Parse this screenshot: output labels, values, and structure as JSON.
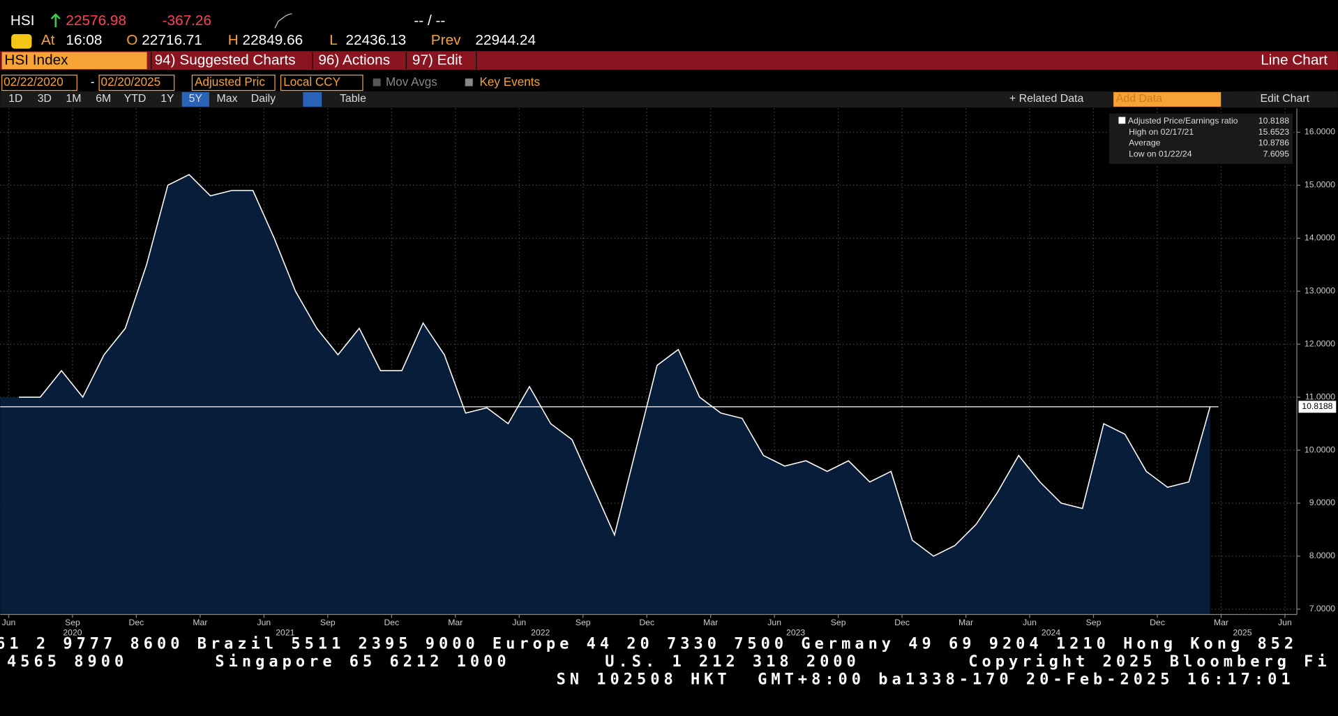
{
  "header": {
    "ticker": "HSI",
    "price": "22576.98",
    "change": "-367.26",
    "bid_ask": "-- / --",
    "time_label": "At",
    "time": "16:08",
    "open_label": "O",
    "open": "22716.71",
    "high_label": "H",
    "high": "22849.66",
    "low_label": "L",
    "low": "22436.13",
    "prev_label": "Prev",
    "prev": "22944.24"
  },
  "toolbar": {
    "security": "HSI Index",
    "menus": [
      "94) Suggested Charts",
      "96) Actions",
      "97) Edit"
    ],
    "chart_type": "Line Chart"
  },
  "settings": {
    "start": "02/22/2020",
    "separator": "-",
    "end": "02/20/2025",
    "field": "Adjusted Pric",
    "currency": "Local CCY",
    "mov_avgs": "Mov Avgs",
    "key_events": "Key Events"
  },
  "range_bar": {
    "periods": [
      "1D",
      "3D",
      "1M",
      "6M",
      "YTD",
      "1Y",
      "5Y",
      "Max"
    ],
    "active": 6,
    "frequency": "Daily",
    "table": "Table",
    "related": "+ Related Data",
    "add_data": "Add Data",
    "edit_chart": "Edit Chart"
  },
  "chart_data": {
    "type": "area",
    "x": [
      "2020-06",
      "2020-07",
      "2020-08",
      "2020-09",
      "2020-10",
      "2020-11",
      "2020-12",
      "2021-01",
      "2021-02",
      "2021-03",
      "2021-04",
      "2021-05",
      "2021-06",
      "2021-07",
      "2021-08",
      "2021-09",
      "2021-10",
      "2021-11",
      "2021-12",
      "2022-01",
      "2022-02",
      "2022-03",
      "2022-04",
      "2022-05",
      "2022-06",
      "2022-07",
      "2022-08",
      "2022-09",
      "2022-10",
      "2022-11",
      "2022-12",
      "2023-01",
      "2023-02",
      "2023-03",
      "2023-04",
      "2023-05",
      "2023-06",
      "2023-07",
      "2023-08",
      "2023-09",
      "2023-10",
      "2023-11",
      "2023-12",
      "2024-01",
      "2024-02",
      "2024-03",
      "2024-04",
      "2024-05",
      "2024-06",
      "2024-07",
      "2024-08",
      "2024-09",
      "2024-10",
      "2024-11",
      "2024-12",
      "2025-01",
      "2025-02"
    ],
    "series": [
      {
        "name": "Adjusted Price/Earnings ratio",
        "color": "#ffffff",
        "fill": "#071d3a",
        "values": [
          11.0,
          11.0,
          11.5,
          11.0,
          11.8,
          12.3,
          13.5,
          15.0,
          15.2,
          14.8,
          14.9,
          14.9,
          14.0,
          13.0,
          12.3,
          11.8,
          12.3,
          11.5,
          11.5,
          12.4,
          11.8,
          10.7,
          10.8,
          10.5,
          11.2,
          10.5,
          10.2,
          9.3,
          8.4,
          10.0,
          11.6,
          11.9,
          11.0,
          10.7,
          10.6,
          9.9,
          9.7,
          9.8,
          9.6,
          9.8,
          9.4,
          9.6,
          8.3,
          8.0,
          8.2,
          8.6,
          9.2,
          9.9,
          9.4,
          9.0,
          8.9,
          10.5,
          10.3,
          9.6,
          9.3,
          9.4,
          10.8188
        ]
      }
    ],
    "legend": [
      {
        "label": "Adjusted Price/Earnings ratio",
        "value": 10.8188
      },
      {
        "label": "High on 02/17/21",
        "value": 15.6523
      },
      {
        "label": "Average",
        "value": 10.8786
      },
      {
        "label": "Low on 01/22/24",
        "value": 7.6095
      }
    ],
    "last_value": {
      "value": 10.8188,
      "label": "10.8188"
    },
    "xlim": [
      "2020-06",
      "2025-06"
    ],
    "xticks": [
      {
        "value": "2020-06",
        "label": "Jun"
      },
      {
        "value": "2020-09",
        "label": "Sep"
      },
      {
        "value": "2020-12",
        "label": "Dec"
      },
      {
        "value": "2021-03",
        "label": "Mar"
      },
      {
        "value": "2021-06",
        "label": "Jun"
      },
      {
        "value": "2021-09",
        "label": "Sep"
      },
      {
        "value": "2021-12",
        "label": "Dec"
      },
      {
        "value": "2022-03",
        "label": "Mar"
      },
      {
        "value": "2022-06",
        "label": "Jun"
      },
      {
        "value": "2022-09",
        "label": "Sep"
      },
      {
        "value": "2022-12",
        "label": "Dec"
      },
      {
        "value": "2023-03",
        "label": "Mar"
      },
      {
        "value": "2023-06",
        "label": "Jun"
      },
      {
        "value": "2023-09",
        "label": "Sep"
      },
      {
        "value": "2023-12",
        "label": "Dec"
      },
      {
        "value": "2024-03",
        "label": "Mar"
      },
      {
        "value": "2024-06",
        "label": "Jun"
      },
      {
        "value": "2024-09",
        "label": "Sep"
      },
      {
        "value": "2024-12",
        "label": "Dec"
      },
      {
        "value": "2025-03",
        "label": "Mar"
      },
      {
        "value": "2025-06",
        "label": "Jun"
      }
    ],
    "xyears": [
      {
        "value": "2020-09",
        "label": "2020"
      },
      {
        "value": "2021-07",
        "label": "2021"
      },
      {
        "value": "2022-07",
        "label": "2022"
      },
      {
        "value": "2023-07",
        "label": "2023"
      },
      {
        "value": "2024-07",
        "label": "2024"
      },
      {
        "value": "2025-04",
        "label": "2025"
      }
    ],
    "ylim": [
      6.9,
      16.45
    ],
    "yticks": [
      {
        "value": 7,
        "label": "7.0000"
      },
      {
        "value": 8,
        "label": "8.0000"
      },
      {
        "value": 9,
        "label": "9.0000"
      },
      {
        "value": 10,
        "label": "10.0000"
      },
      {
        "value": 11,
        "label": "11.0000"
      },
      {
        "value": 12,
        "label": "12.0000"
      },
      {
        "value": 13,
        "label": "13.0000"
      },
      {
        "value": 14,
        "label": "14.0000"
      },
      {
        "value": 15,
        "label": "15.0000"
      },
      {
        "value": 16,
        "label": "16.0000"
      }
    ],
    "grid": true
  },
  "footer": {
    "line1": "61 2 9777 8600 Brazil 5511 2395 9000 Europe 44 20 7330 7500 Germany 49 69 9204 1210 Hong Kong 852",
    "line2": [
      "4565 8900",
      "Singapore 65 6212 1000",
      "U.S. 1 212 318 2000",
      "Copyright 2025 Bloomberg Fi"
    ],
    "line3": "SN 102508 HKT  GMT+8:00 ba1338-170 20-Feb-2025 16:17:01"
  }
}
